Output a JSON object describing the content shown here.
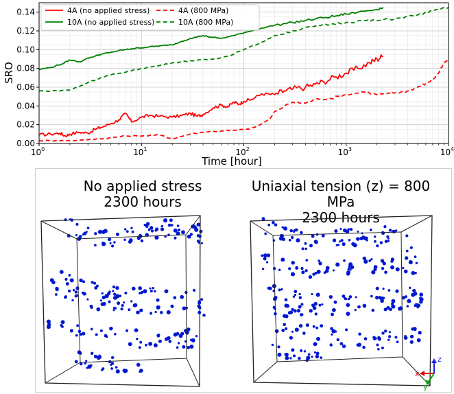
{
  "chart_data": {
    "type": "line",
    "xscale": "log",
    "xlabel": "Time [hour]",
    "ylabel": "SRO",
    "xlim": [
      1,
      10000
    ],
    "ylim": [
      0.0,
      0.15
    ],
    "xticks": [
      1,
      10,
      100,
      1000,
      10000
    ],
    "xtick_labels": [
      {
        "base": "10",
        "exp": "0"
      },
      {
        "base": "10",
        "exp": "1"
      },
      {
        "base": "10",
        "exp": "2"
      },
      {
        "base": "10",
        "exp": "3"
      },
      {
        "base": "10",
        "exp": "4"
      }
    ],
    "yticks": [
      0.0,
      0.02,
      0.04,
      0.06,
      0.08,
      0.1,
      0.12,
      0.14
    ],
    "ytick_labels": [
      "0.00",
      "0.02",
      "0.04",
      "0.06",
      "0.08",
      "0.10",
      "0.12",
      "0.14"
    ],
    "grid": true,
    "legend_position": "top-left",
    "series": [
      {
        "name": "4A (no applied stress)",
        "color": "#ff0000",
        "dash": "solid",
        "x": [
          1,
          1.3,
          1.6,
          1.8,
          2.0,
          2.5,
          3,
          3.5,
          4,
          5,
          6,
          7,
          8,
          10,
          12,
          15,
          20,
          25,
          30,
          35,
          40,
          50,
          60,
          70,
          80,
          90,
          100,
          120,
          150,
          200,
          250,
          300,
          400,
          500,
          600,
          800,
          1000,
          1300,
          1700,
          2000,
          2300
        ],
        "y": [
          0.009,
          0.01,
          0.011,
          0.008,
          0.01,
          0.012,
          0.011,
          0.015,
          0.017,
          0.021,
          0.025,
          0.032,
          0.023,
          0.028,
          0.03,
          0.029,
          0.028,
          0.03,
          0.032,
          0.029,
          0.031,
          0.038,
          0.041,
          0.039,
          0.044,
          0.042,
          0.045,
          0.047,
          0.053,
          0.052,
          0.056,
          0.058,
          0.06,
          0.063,
          0.066,
          0.071,
          0.075,
          0.08,
          0.086,
          0.09,
          0.093
        ]
      },
      {
        "name": "4A (800 MPa)",
        "color": "#ff0000",
        "dash": "dashed",
        "x": [
          1,
          1.5,
          2,
          3,
          4,
          5,
          7,
          10,
          15,
          20,
          30,
          40,
          50,
          60,
          70,
          80,
          100,
          120,
          150,
          180,
          200,
          300,
          400,
          500,
          700,
          1000,
          1500,
          2000,
          2500,
          3000,
          4000,
          5000,
          6000,
          7000,
          8000,
          9000,
          10000
        ],
        "y": [
          0.003,
          0.003,
          0.003,
          0.004,
          0.005,
          0.006,
          0.008,
          0.008,
          0.009,
          0.005,
          0.01,
          0.012,
          0.013,
          0.013,
          0.014,
          0.014,
          0.015,
          0.016,
          0.021,
          0.026,
          0.034,
          0.044,
          0.043,
          0.047,
          0.048,
          0.052,
          0.055,
          0.052,
          0.053,
          0.054,
          0.056,
          0.06,
          0.064,
          0.068,
          0.075,
          0.085,
          0.09
        ]
      },
      {
        "name": "10A (no applied stress)",
        "color": "#008000",
        "dash": "solid",
        "x": [
          1,
          1.3,
          1.7,
          2,
          2.5,
          3,
          3.5,
          4,
          5,
          6,
          7,
          8,
          10,
          12,
          15,
          20,
          25,
          30,
          40,
          50,
          60,
          80,
          100,
          150,
          200,
          300,
          400,
          600,
          800,
          1000,
          1500,
          2000,
          2300
        ],
        "y": [
          0.079,
          0.081,
          0.085,
          0.089,
          0.087,
          0.091,
          0.093,
          0.095,
          0.097,
          0.099,
          0.1,
          0.101,
          0.102,
          0.103,
          0.104,
          0.105,
          0.109,
          0.112,
          0.115,
          0.113,
          0.112,
          0.115,
          0.118,
          0.123,
          0.126,
          0.129,
          0.131,
          0.134,
          0.136,
          0.138,
          0.141,
          0.143,
          0.145
        ]
      },
      {
        "name": "10A (800 MPa)",
        "color": "#008000",
        "dash": "dashed",
        "x": [
          1,
          1.5,
          2,
          2.5,
          3,
          4,
          5,
          7,
          10,
          15,
          20,
          30,
          40,
          50,
          70,
          100,
          150,
          200,
          300,
          500,
          700,
          1000,
          1500,
          2000,
          3000,
          5000,
          7000,
          10000
        ],
        "y": [
          0.056,
          0.056,
          0.057,
          0.061,
          0.065,
          0.07,
          0.073,
          0.076,
          0.08,
          0.083,
          0.086,
          0.088,
          0.089,
          0.09,
          0.093,
          0.1,
          0.108,
          0.115,
          0.12,
          0.125,
          0.127,
          0.129,
          0.131,
          0.131,
          0.133,
          0.137,
          0.141,
          0.145
        ]
      }
    ]
  },
  "scenes": [
    {
      "title_line1": "No applied stress",
      "title_line2": "2300 hours",
      "point_color": "#0018d0"
    },
    {
      "title_line1": "Uniaxial tension (z) = 800 MPa",
      "title_line2": "2300 hours",
      "point_color": "#0018d0"
    }
  ],
  "axis_triad": {
    "x_label": "x",
    "y_label": "y",
    "z_label": "z",
    "x_color": "#e00000",
    "y_color": "#00a000",
    "z_color": "#2020e0"
  }
}
